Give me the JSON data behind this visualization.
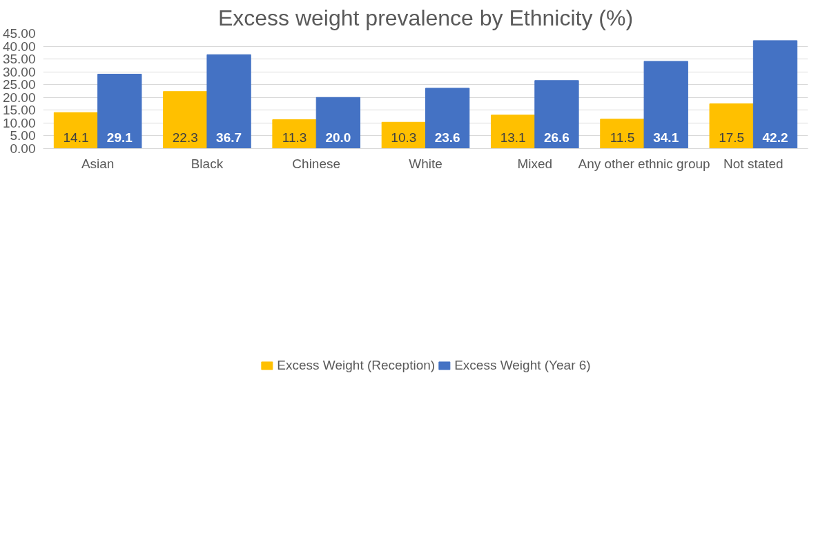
{
  "chart_data": {
    "type": "bar",
    "title": "Excess weight prevalence by Ethnicity (%)",
    "categories": [
      "Asian",
      "Black",
      "Chinese",
      "White",
      "Mixed",
      "Any other ethnic group",
      "Not stated"
    ],
    "series": [
      {
        "name": "Excess Weight (Reception)",
        "color": "#ffc000",
        "values": [
          14.1,
          22.3,
          11.3,
          10.3,
          13.1,
          11.5,
          17.5
        ],
        "value_labels": [
          "14.1",
          "22.3",
          "11.3",
          "10.3",
          "13.1",
          "11.5",
          "17.5"
        ]
      },
      {
        "name": "Excess Weight (Year 6)",
        "color": "#4472c4",
        "values": [
          29.1,
          36.7,
          20.0,
          23.6,
          26.6,
          34.1,
          42.2
        ],
        "value_labels": [
          "29.1",
          "36.7",
          "20.0",
          "23.6",
          "26.6",
          "34.1",
          "42.2"
        ]
      }
    ],
    "ylim": [
      0,
      45
    ],
    "yticks": [
      {
        "value": 0,
        "label": "0.00"
      },
      {
        "value": 5,
        "label": "5.00"
      },
      {
        "value": 10,
        "label": "10.00"
      },
      {
        "value": 15,
        "label": "15.00"
      },
      {
        "value": 20,
        "label": "20.00"
      },
      {
        "value": 25,
        "label": "25.00"
      },
      {
        "value": 30,
        "label": "30.00"
      },
      {
        "value": 35,
        "label": "35.00"
      },
      {
        "value": 40,
        "label": "40.00"
      },
      {
        "value": 45,
        "label": "45.00"
      }
    ],
    "grid": "y",
    "legend": "bottom"
  }
}
